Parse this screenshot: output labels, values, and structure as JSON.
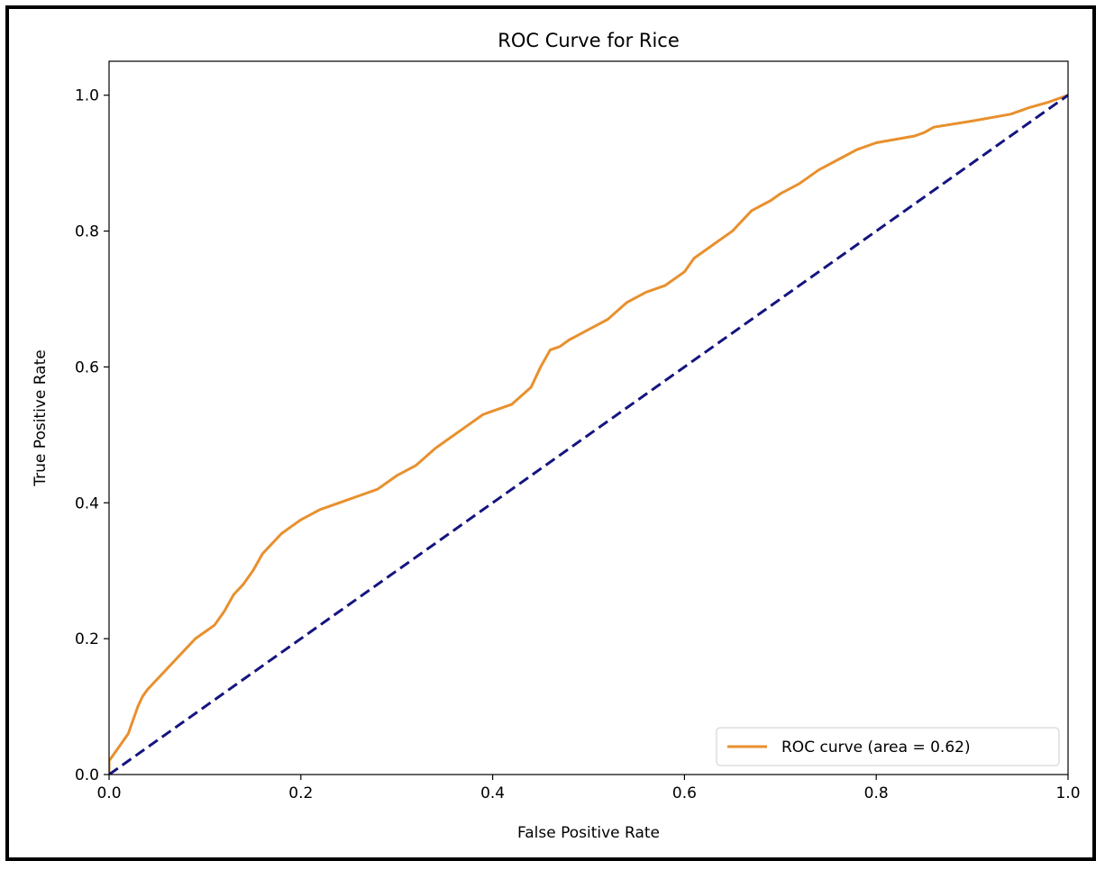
{
  "chart_data": {
    "type": "line",
    "title": "ROC Curve for Rice",
    "xlabel": "False Positive Rate",
    "ylabel": "True Positive Rate",
    "xlim": [
      0.0,
      1.0
    ],
    "ylim": [
      0.0,
      1.05
    ],
    "xticks": [
      "0.0",
      "0.2",
      "0.4",
      "0.6",
      "0.8",
      "1.0"
    ],
    "yticks": [
      "0.0",
      "0.2",
      "0.4",
      "0.6",
      "0.8",
      "1.0"
    ],
    "grid": false,
    "legend": {
      "location": "lower-right",
      "entries": [
        {
          "label": "ROC curve (area = 0.62)",
          "color": "#e8902e"
        }
      ]
    },
    "series": [
      {
        "label": "ROC curve (area = 0.62)",
        "color": "#e8902e",
        "style": "solid",
        "x": [
          0.0,
          0.0,
          0.005,
          0.01,
          0.015,
          0.02,
          0.025,
          0.03,
          0.035,
          0.04,
          0.05,
          0.06,
          0.07,
          0.08,
          0.09,
          0.1,
          0.11,
          0.12,
          0.13,
          0.14,
          0.15,
          0.16,
          0.17,
          0.18,
          0.19,
          0.2,
          0.22,
          0.24,
          0.26,
          0.28,
          0.3,
          0.32,
          0.34,
          0.35,
          0.37,
          0.39,
          0.4,
          0.42,
          0.44,
          0.45,
          0.46,
          0.47,
          0.48,
          0.5,
          0.52,
          0.54,
          0.56,
          0.58,
          0.6,
          0.61,
          0.63,
          0.65,
          0.67,
          0.69,
          0.7,
          0.72,
          0.74,
          0.76,
          0.78,
          0.8,
          0.82,
          0.84,
          0.85,
          0.86,
          0.9,
          0.94,
          0.96,
          0.98,
          1.0
        ],
        "y": [
          0.0,
          0.02,
          0.03,
          0.04,
          0.05,
          0.06,
          0.08,
          0.1,
          0.115,
          0.125,
          0.14,
          0.155,
          0.17,
          0.185,
          0.2,
          0.21,
          0.22,
          0.24,
          0.265,
          0.28,
          0.3,
          0.325,
          0.34,
          0.355,
          0.365,
          0.375,
          0.39,
          0.4,
          0.41,
          0.42,
          0.44,
          0.455,
          0.48,
          0.49,
          0.51,
          0.53,
          0.535,
          0.545,
          0.57,
          0.6,
          0.625,
          0.63,
          0.64,
          0.655,
          0.67,
          0.695,
          0.71,
          0.72,
          0.74,
          0.76,
          0.78,
          0.8,
          0.83,
          0.845,
          0.855,
          0.87,
          0.89,
          0.905,
          0.92,
          0.93,
          0.935,
          0.94,
          0.945,
          0.953,
          0.962,
          0.972,
          0.982,
          0.99,
          1.0
        ]
      },
      {
        "label": "",
        "color": "#141480",
        "style": "dashed",
        "x": [
          0.0,
          1.0
        ],
        "y": [
          0.0,
          1.0
        ]
      }
    ]
  }
}
